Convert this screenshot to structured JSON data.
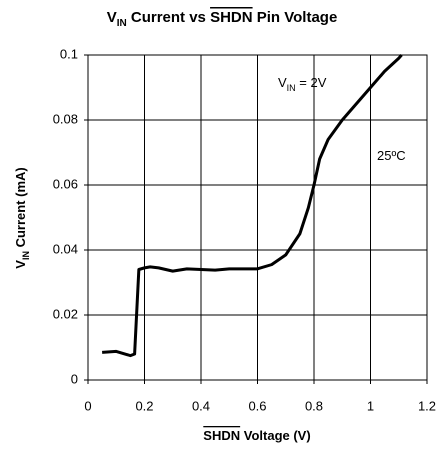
{
  "chart_data": {
    "type": "line",
    "title": [
      "V",
      "IN",
      " Current vs ",
      "SHDN",
      " Pin Voltage"
    ],
    "x_label": [
      "SHDN",
      " Voltage (V)"
    ],
    "y_label": [
      "V",
      "IN",
      " Current (mA)"
    ],
    "annotations": [
      [
        "V",
        "IN",
        " = 2V"
      ],
      [
        "25ºC"
      ]
    ],
    "series": [
      {
        "color": "#000000",
        "x": [
          0.05,
          0.1,
          0.15,
          0.165,
          0.18,
          0.2,
          0.22,
          0.25,
          0.3,
          0.35,
          0.4,
          0.45,
          0.5,
          0.55,
          0.6,
          0.65,
          0.7,
          0.75,
          0.78,
          0.8,
          0.82,
          0.85,
          0.9,
          0.95,
          1.0,
          1.05,
          1.1,
          1.11
        ],
        "values": [
          0.0085,
          0.0088,
          0.0075,
          0.008,
          0.034,
          0.0345,
          0.0348,
          0.0345,
          0.0335,
          0.0342,
          0.034,
          0.0338,
          0.0342,
          0.0342,
          0.0342,
          0.0355,
          0.0385,
          0.045,
          0.053,
          0.06,
          0.068,
          0.074,
          0.08,
          0.085,
          0.09,
          0.095,
          0.099,
          0.1
        ]
      }
    ],
    "xlim": [
      0,
      1.2
    ],
    "xticks": [
      0,
      0.2,
      0.4,
      0.6,
      0.8,
      1,
      1.2
    ],
    "ylim": [
      0,
      0.1
    ],
    "yticks": [
      0,
      0.02,
      0.04,
      0.06,
      0.08,
      0.1
    ],
    "grid": true
  }
}
